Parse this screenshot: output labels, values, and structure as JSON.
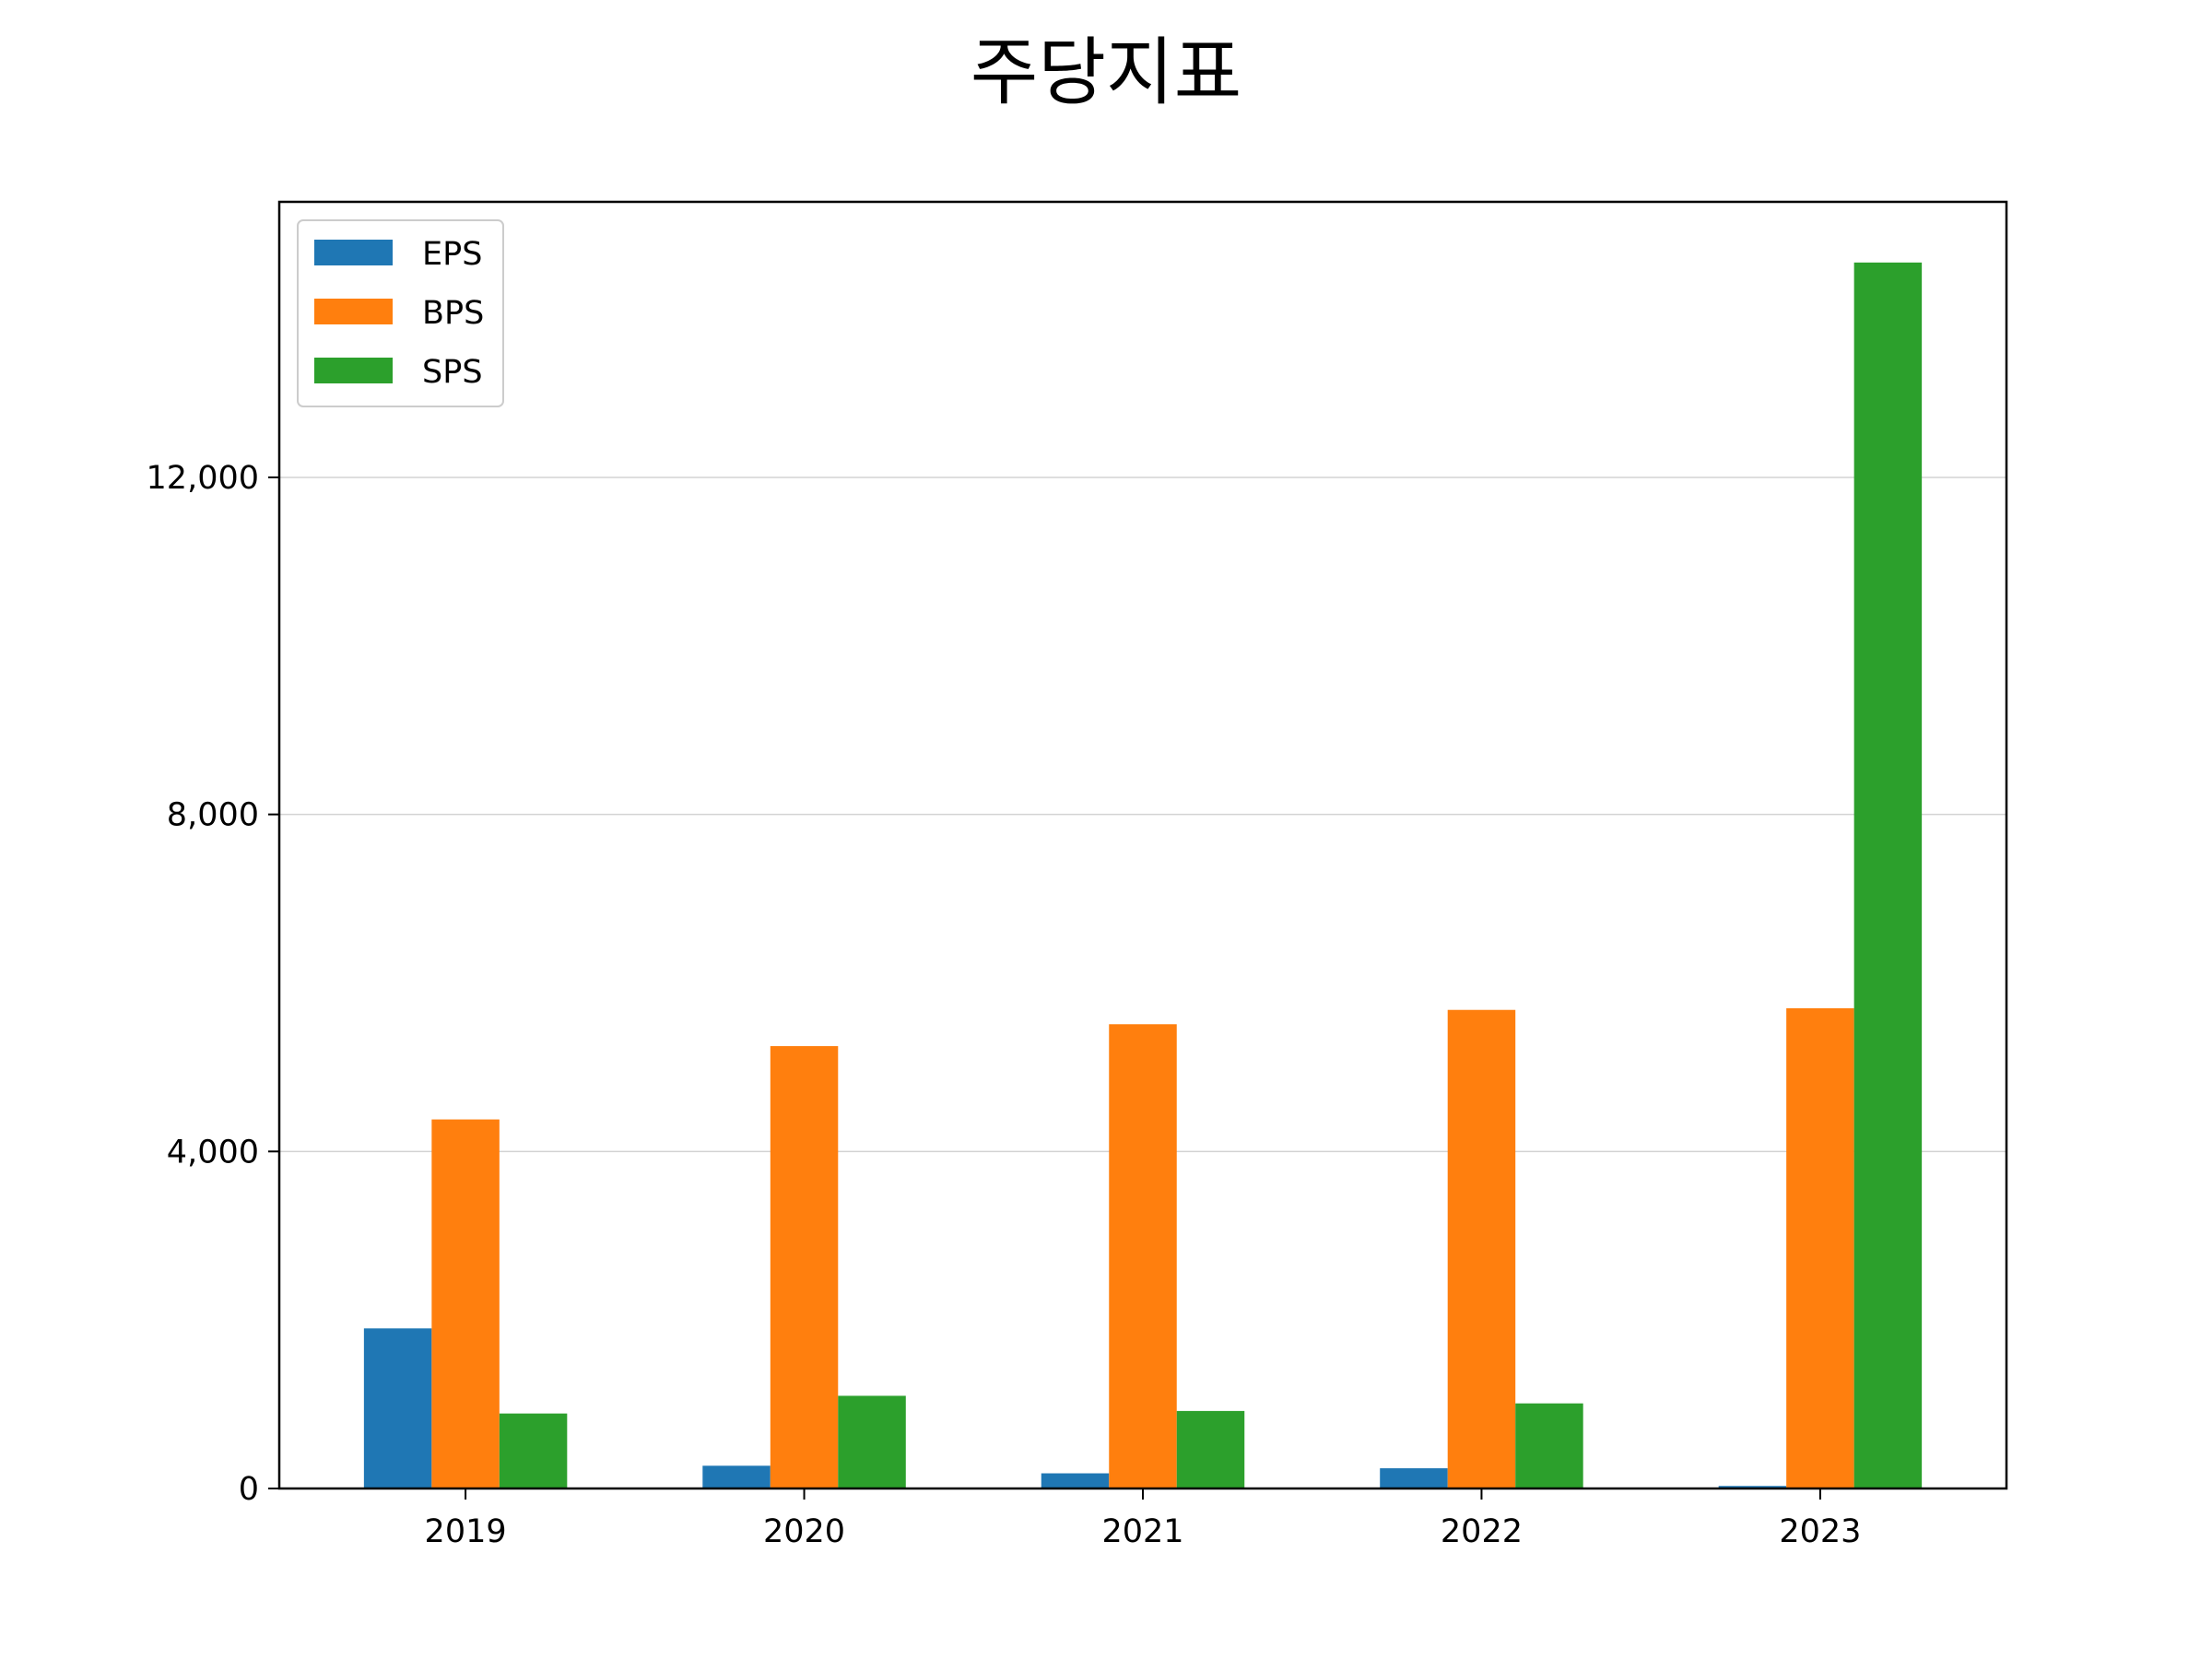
{
  "chart_data": {
    "type": "bar",
    "title": "주당지표",
    "xlabel": "",
    "ylabel": "",
    "categories": [
      "2019",
      "2020",
      "2021",
      "2022",
      "2023"
    ],
    "series": [
      {
        "name": "EPS",
        "color": "#1f77b4",
        "values": [
          1900,
          270,
          180,
          240,
          30
        ]
      },
      {
        "name": "BPS",
        "color": "#ff7f0e",
        "values": [
          4380,
          5250,
          5510,
          5680,
          5700
        ]
      },
      {
        "name": "SPS",
        "color": "#2ca02c",
        "values": [
          890,
          1100,
          920,
          1010,
          14550
        ]
      }
    ],
    "ylim": [
      0,
      15270
    ],
    "yticks": [
      0,
      4000,
      8000,
      12000
    ],
    "ytick_labels": [
      "0",
      "4,000",
      "8,000",
      "12,000"
    ],
    "grid": "y",
    "legend": "top-left"
  }
}
